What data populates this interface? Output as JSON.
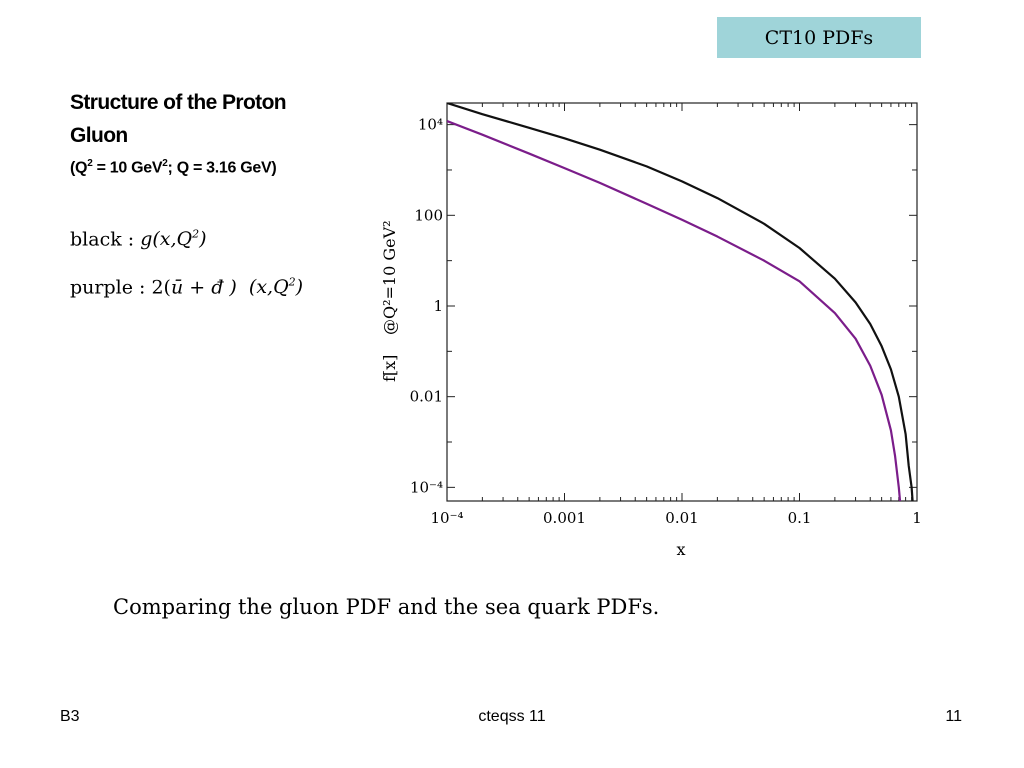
{
  "header": {
    "tag": "CT10 PDFs"
  },
  "title": {
    "line1": "Structure of the Proton",
    "line2": "Gluon",
    "sub_pre": "(Q",
    "sub_mid": " = 10 GeV",
    "sub_post": "; Q = 3.16 GeV)",
    "sup": "2"
  },
  "legend": {
    "black_label": "black : ",
    "black_expr": "g(x,Q",
    "black_close": ")",
    "purple_label": "purple : 2(",
    "purple_expr": "ū + đ )",
    "purple_args": "(x,Q",
    "purple_close": ")",
    "sup": "2"
  },
  "caption": "Comparing the gluon PDF and the sea quark PDFs.",
  "footer": {
    "left": "B3",
    "center": "cteqss 11",
    "right": "11"
  },
  "chart_data": {
    "type": "line",
    "xscale": "log",
    "yscale": "log",
    "xlim": [
      0.0001,
      1
    ],
    "ylim": [
      5e-05,
      30000
    ],
    "xlabel": "x",
    "ylabel_left": "f[x]",
    "ylabel_right": "@Q²=10 GeV²",
    "x_ticks": [
      {
        "value": 0.0001,
        "label": "10⁻⁴"
      },
      {
        "value": 0.001,
        "label": "0.001"
      },
      {
        "value": 0.01,
        "label": "0.01"
      },
      {
        "value": 0.1,
        "label": "0.1"
      },
      {
        "value": 1,
        "label": "1"
      }
    ],
    "y_ticks": [
      {
        "value": 0.0001,
        "label": "10⁻⁴"
      },
      {
        "value": 0.01,
        "label": "0.01"
      },
      {
        "value": 1,
        "label": "1"
      },
      {
        "value": 100,
        "label": "100"
      },
      {
        "value": 10000,
        "label": "10⁴"
      }
    ],
    "series": [
      {
        "color": "#111111",
        "points": [
          [
            0.0001,
            30000
          ],
          [
            0.0002,
            17000
          ],
          [
            0.0005,
            8500
          ],
          [
            0.001,
            5000
          ],
          [
            0.002,
            2800
          ],
          [
            0.005,
            1200
          ],
          [
            0.01,
            560
          ],
          [
            0.02,
            240
          ],
          [
            0.05,
            65
          ],
          [
            0.1,
            19
          ],
          [
            0.2,
            4
          ],
          [
            0.3,
            1.2
          ],
          [
            0.4,
            0.4
          ],
          [
            0.5,
            0.13
          ],
          [
            0.6,
            0.04
          ],
          [
            0.7,
            0.01
          ],
          [
            0.8,
            0.0015
          ],
          [
            0.85,
            0.0003
          ],
          [
            0.9,
            0.0001
          ],
          [
            0.93,
            3e-05
          ]
        ]
      },
      {
        "color": "#7b1d8a",
        "points": [
          [
            0.0001,
            12000
          ],
          [
            0.0002,
            6000
          ],
          [
            0.0005,
            2300
          ],
          [
            0.001,
            1100
          ],
          [
            0.002,
            520
          ],
          [
            0.005,
            180
          ],
          [
            0.01,
            80
          ],
          [
            0.02,
            34
          ],
          [
            0.05,
            10
          ],
          [
            0.1,
            3.5
          ],
          [
            0.2,
            0.7
          ],
          [
            0.3,
            0.19
          ],
          [
            0.4,
            0.048
          ],
          [
            0.5,
            0.011
          ],
          [
            0.6,
            0.0018
          ],
          [
            0.65,
            0.0005
          ],
          [
            0.7,
            0.0001
          ],
          [
            0.73,
            3e-05
          ]
        ]
      }
    ]
  }
}
